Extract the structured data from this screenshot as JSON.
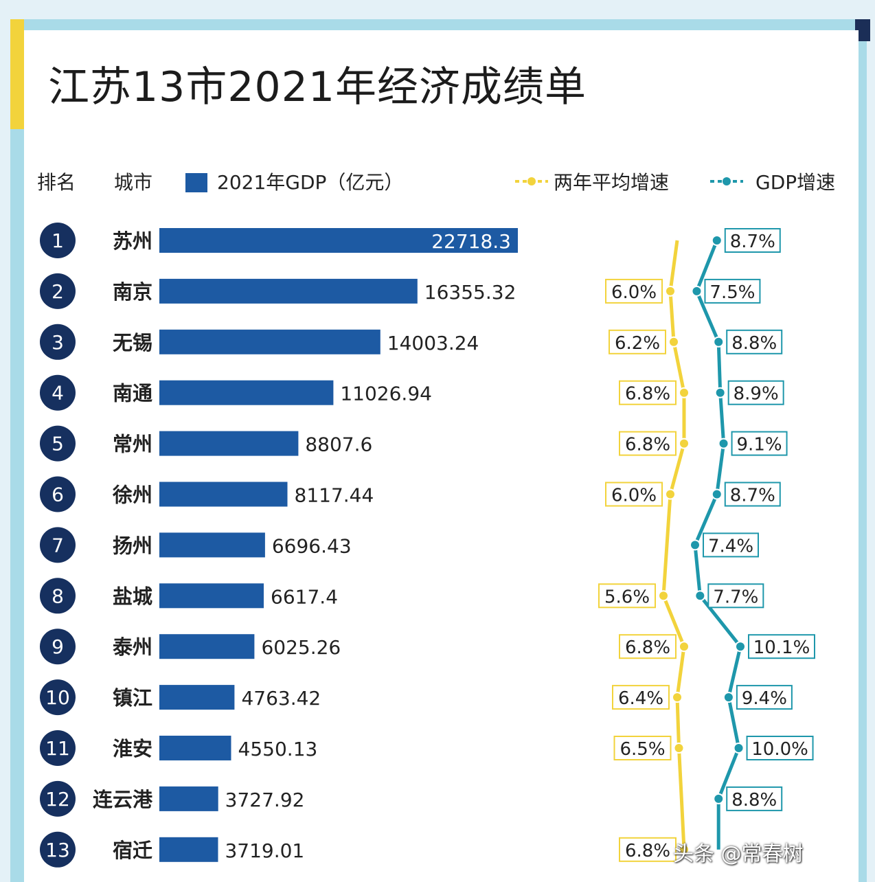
{
  "title": "江苏13市2021年经济成绩单",
  "header": {
    "rank": "排名",
    "city": "城市",
    "gdp_legend": "2021年GDP（亿元）",
    "avg_growth_legend": "两年平均增速",
    "gdp_growth_legend": "GDP增速"
  },
  "colors": {
    "bar": "#1d5aa3",
    "rank_circle": "#16305f",
    "avg_line": "#f2d33c",
    "gdp_line": "#1e97ab",
    "avg_box_border": "#f2d33c",
    "gdp_box_border": "#1e97ab"
  },
  "watermark": "头条 @常春树",
  "chart_data": {
    "type": "bar",
    "title": "江苏13市2021年经济成绩单",
    "categories": [
      "苏州",
      "南京",
      "无锡",
      "南通",
      "常州",
      "徐州",
      "扬州",
      "盐城",
      "泰州",
      "镇江",
      "淮安",
      "连云港",
      "宿迁"
    ],
    "ranks": [
      "1",
      "2",
      "3",
      "4",
      "5",
      "6",
      "7",
      "8",
      "9",
      "10",
      "11",
      "12",
      "13"
    ],
    "series": [
      {
        "name": "2021年GDP（亿元）",
        "type": "bar",
        "values": [
          22718.3,
          16355.32,
          14003.24,
          11026.94,
          8807.6,
          8117.44,
          6696.43,
          6617.4,
          6025.26,
          4763.42,
          4550.13,
          3727.92,
          3719.01
        ],
        "labels": [
          "22718.3",
          "16355.32",
          "14003.24",
          "11026.94",
          "8807.6",
          "8117.44",
          "6696.43",
          "6617.4",
          "6025.26",
          "4763.42",
          "4550.13",
          "3727.92",
          "3719.01"
        ]
      },
      {
        "name": "两年平均增速",
        "type": "line",
        "values": [
          null,
          6.0,
          6.2,
          6.8,
          6.8,
          6.0,
          null,
          5.6,
          6.8,
          6.4,
          6.5,
          null,
          6.8
        ],
        "labels": [
          "",
          "6.0%",
          "6.2%",
          "6.8%",
          "6.8%",
          "6.0%",
          "",
          "5.6%",
          "6.8%",
          "6.4%",
          "6.5%",
          "",
          "6.8%"
        ]
      },
      {
        "name": "GDP增速",
        "type": "line",
        "values": [
          8.7,
          7.5,
          8.8,
          8.9,
          9.1,
          8.7,
          7.4,
          7.7,
          10.1,
          9.4,
          10.0,
          8.8,
          null
        ],
        "labels": [
          "8.7%",
          "7.5%",
          "8.8%",
          "8.9%",
          "9.1%",
          "8.7%",
          "7.4%",
          "7.7%",
          "10.1%",
          "9.4%",
          "10.0%",
          "8.8%",
          ""
        ]
      }
    ],
    "xlim": [
      0,
      22718.3
    ]
  }
}
